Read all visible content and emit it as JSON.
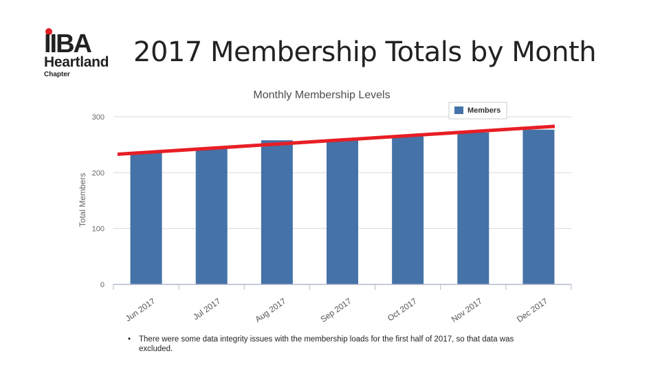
{
  "brand": {
    "logo_text": "IIBA",
    "name": "Heartland",
    "subtitle": "Chapter"
  },
  "slide": {
    "title": "2017 Membership Totals by Month",
    "footnote_bullet": "•",
    "footnote": "There were some data integrity issues with the membership loads for the first half of 2017, so that data was excluded."
  },
  "chart_data": {
    "type": "bar",
    "title": "Monthly Membership Levels",
    "xlabel": "",
    "ylabel": "Total Members",
    "categories": [
      "Jun 2017",
      "Jul 2017",
      "Aug 2017",
      "Sep 2017",
      "Oct 2017",
      "Nov 2017",
      "Dec 2017"
    ],
    "series": [
      {
        "name": "Members",
        "values": [
          236,
          245,
          258,
          259,
          265,
          272,
          277
        ],
        "color": "#4572a7"
      }
    ],
    "ylim": [
      0,
      300
    ],
    "yticks": [
      0,
      100,
      200,
      300
    ],
    "grid": true,
    "legend": "top-right",
    "trendline": {
      "color": "#e81e25",
      "start": 233,
      "end": 283
    }
  }
}
